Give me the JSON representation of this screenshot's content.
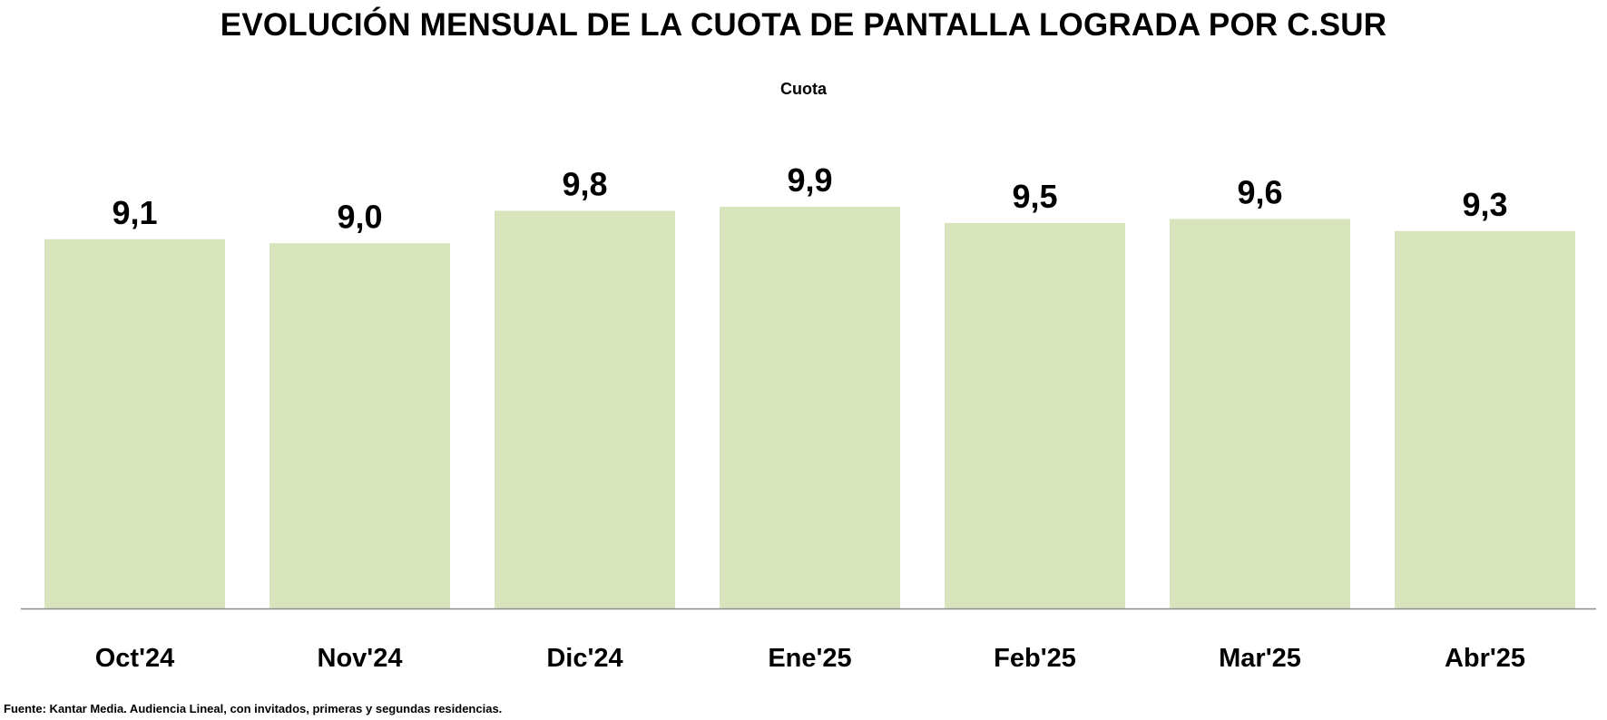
{
  "chart_data": {
    "type": "bar",
    "title": "EVOLUCIÓN MENSUAL DE LA CUOTA DE PANTALLA LOGRADA POR C.SUR",
    "subtitle": "Cuota",
    "categories": [
      "Oct'24",
      "Nov'24",
      "Dic'24",
      "Ene'25",
      "Feb'25",
      "Mar'25",
      "Abr'25"
    ],
    "values": [
      9.1,
      9.0,
      9.8,
      9.9,
      9.5,
      9.6,
      9.3
    ],
    "value_labels": [
      "9,1",
      "9,0",
      "9,8",
      "9,9",
      "9,5",
      "9,6",
      "9,3"
    ],
    "xlabel": "",
    "ylabel": "",
    "ylim": [
      0,
      10.5
    ],
    "grid": false,
    "legend": "none",
    "bar_color": "#d8e4bc",
    "axis_color": "#8c8c8c"
  },
  "footnote": "Fuente: Kantar Media. Audiencia Lineal, con invitados, primeras y segundas residencias."
}
